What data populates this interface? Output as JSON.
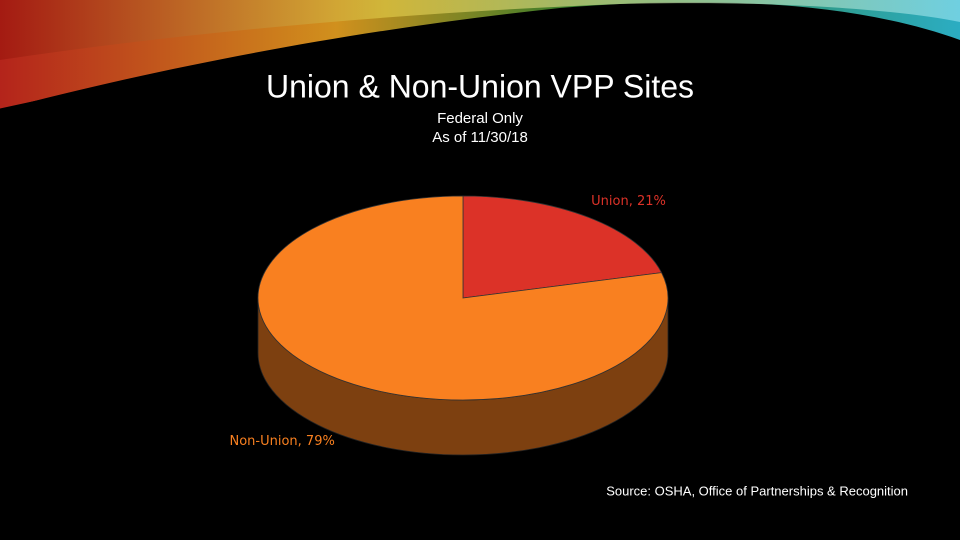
{
  "chart_data": {
    "type": "pie",
    "title": "Union & Non-Union VPP Sites",
    "subtitle": [
      "Federal Only",
      "As of 11/30/18"
    ],
    "categories": [
      "Union",
      "Non-Union"
    ],
    "values": [
      21,
      79
    ],
    "value_labels": [
      "Union, 21%",
      "Non-Union, 79%"
    ],
    "colors": [
      "#dc3228",
      "#f98020"
    ],
    "source": "Source: OSHA, Office of Partnerships & Recognition"
  }
}
